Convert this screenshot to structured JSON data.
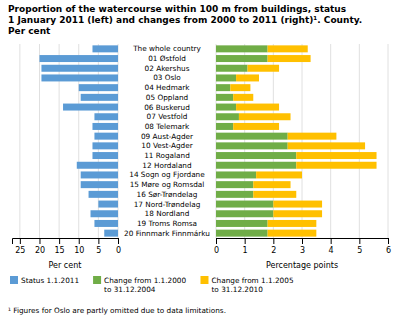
{
  "chart_data": [
    {
      "type": "bar",
      "orientation": "horizontal",
      "title": "Proportion of the watercourse within 100 m from buildings, status\n1 January 2011 (left) and changes from 2000 to 2011 (right)¹. County.",
      "subtitle": "Per cent",
      "categories": [
        "The whole country",
        "01 Østfold",
        "02 Akershus",
        "03 Oslo",
        "04 Hedmark",
        "05 Oppland",
        "06 Buskerud",
        "07 Vestfold",
        "08 Telemark",
        "09 Aust-Agder",
        "10 Vest-Agder",
        "11 Rogaland",
        "12 Hordaland",
        "14 Sogn og Fjordane",
        "15 Møre og Romsdal",
        "16 Sør-Trøndelag",
        "17 Nord-Trøndelag",
        "18 Nordland",
        "19 Troms Romsa",
        "20 Finnmark Finnmárku"
      ],
      "series": [
        {
          "name": "Status 1.1.2011",
          "color": "#5b9bd5",
          "values": [
            6.5,
            20.0,
            19.5,
            19.5,
            10.0,
            9.5,
            14.0,
            6.0,
            6.5,
            6.0,
            6.5,
            6.5,
            10.5,
            9.5,
            9.5,
            7.5,
            5.0,
            7.0,
            6.0,
            3.5
          ]
        }
      ],
      "xlim": [
        27,
        0
      ],
      "xticks": [
        25,
        20,
        15,
        10,
        5,
        0
      ],
      "xlabel": "Per cent",
      "grid": true,
      "legend": "lower left",
      "annotations": [
        "¹ Figures for Oslo are partly omitted due to data limitations."
      ]
    },
    {
      "type": "bar",
      "orientation": "horizontal",
      "stacked": true,
      "categories": [
        "The whole country",
        "01 Østfold",
        "02 Akershus",
        "03 Oslo",
        "04 Hedmark",
        "05 Oppland",
        "06 Buskerud",
        "07 Vestfold",
        "08 Telemark",
        "09 Aust-Agder",
        "10 Vest-Agder",
        "11 Rogaland",
        "12 Hordaland",
        "14 Sogn og Fjordane",
        "15 Møre og Romsdal",
        "16 Sør-Trøndelag",
        "17 Nord-Trøndelag",
        "18 Nordland",
        "19 Troms Romsa",
        "20 Finnmark Finnmárku"
      ],
      "series": [
        {
          "name": "Change from 1.1.2000\nto 31.12.2004",
          "color": "#70ad47",
          "values": [
            1.8,
            1.8,
            1.1,
            0.7,
            0.5,
            0.6,
            0.7,
            0.8,
            0.6,
            2.5,
            2.5,
            2.8,
            2.8,
            1.4,
            1.3,
            1.3,
            2.0,
            2.0,
            1.8,
            1.8
          ]
        },
        {
          "name": "Change from 1.1.2005\nto 31.12.2010",
          "color": "#ffc000",
          "values": [
            1.4,
            1.5,
            1.1,
            0.8,
            0.7,
            0.7,
            1.5,
            1.8,
            1.6,
            1.7,
            2.7,
            2.8,
            2.8,
            1.6,
            1.3,
            1.5,
            1.7,
            1.7,
            1.7,
            1.7
          ]
        }
      ],
      "xlim": [
        0,
        6
      ],
      "xticks": [
        0,
        1,
        2,
        3,
        4,
        5,
        6
      ],
      "xlabel": "Percentage points",
      "grid": true,
      "legend": "lower left"
    }
  ]
}
